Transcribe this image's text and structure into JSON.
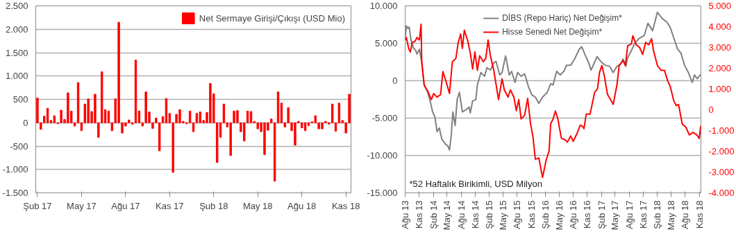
{
  "chart_data": [
    {
      "type": "bar",
      "categories": [
        "Şub 17",
        null,
        null,
        null,
        null,
        null,
        null,
        null,
        null,
        null,
        null,
        null,
        null,
        "May 17",
        null,
        null,
        null,
        null,
        null,
        null,
        null,
        null,
        null,
        null,
        null,
        null,
        "Ağu 17",
        null,
        null,
        null,
        null,
        null,
        null,
        null,
        null,
        null,
        null,
        null,
        null,
        "Kas 17",
        null,
        null,
        null,
        null,
        null,
        null,
        null,
        null,
        null,
        null,
        null,
        null,
        "Şub 18",
        null,
        null,
        null,
        null,
        null,
        null,
        null,
        null,
        null,
        null,
        null,
        null,
        "May 18",
        null,
        null,
        null,
        null,
        null,
        null,
        null,
        null,
        null,
        null,
        null,
        null,
        "Ağu 18",
        null,
        null,
        null,
        null,
        null,
        null,
        null,
        null,
        null,
        null,
        null,
        null,
        "Kas 18",
        null
      ],
      "series": [
        {
          "name": "Net Sermaye Girişi/Çıkışı (USD Mio)",
          "color": "#ff0000",
          "values": [
            530,
            -140,
            140,
            310,
            50,
            150,
            -20,
            270,
            70,
            640,
            250,
            -70,
            860,
            -170,
            400,
            510,
            240,
            610,
            -310,
            1090,
            280,
            250,
            -170,
            510,
            2150,
            -220,
            -70,
            60,
            -30,
            1340,
            250,
            -70,
            660,
            230,
            -120,
            100,
            -600,
            130,
            520,
            200,
            -1060,
            180,
            280,
            30,
            -20,
            250,
            -190,
            200,
            230,
            50,
            220,
            840,
            620,
            -850,
            -310,
            400,
            -90,
            -700,
            250,
            260,
            -190,
            -390,
            250,
            240,
            30,
            -130,
            -190,
            -680,
            -160,
            80,
            -1250,
            660,
            420,
            -90,
            320,
            -170,
            -480,
            30,
            -110,
            -170,
            -60,
            20,
            150,
            -130,
            -130,
            30,
            -30,
            400,
            -180,
            420,
            50,
            -220,
            610
          ]
        }
      ],
      "ylim": [
        -1500,
        2500
      ],
      "yticks": [
        {
          "value": -1500,
          "label": "-1.500"
        },
        {
          "value": -1000,
          "label": "-1.000"
        },
        {
          "value": -500,
          "label": "-500"
        },
        0,
        500,
        {
          "value": 1000,
          "label": "1.000"
        },
        {
          "value": 1500,
          "label": "1.500"
        },
        {
          "value": 2000,
          "label": "2.000"
        },
        {
          "value": 2500,
          "label": "2.500"
        }
      ],
      "grid": "y",
      "legend": "top right"
    },
    {
      "type": "line",
      "xlim": [
        "2013-08-01",
        "2018-11-12"
      ],
      "xticks": [
        {
          "value": "2013-08-01",
          "label": "Ağu 13"
        },
        {
          "value": "2013-11-01",
          "label": "Kas 13"
        },
        {
          "value": "2014-02-01",
          "label": "Şub 14"
        },
        {
          "value": "2014-05-01",
          "label": "May 14"
        },
        {
          "value": "2014-08-01",
          "label": "Ağu 14"
        },
        {
          "value": "2014-11-01",
          "label": "Kas 14"
        },
        {
          "value": "2015-02-01",
          "label": "Şub 15"
        },
        {
          "value": "2015-05-01",
          "label": "May 15"
        },
        {
          "value": "2015-08-01",
          "label": "Ağu 15"
        },
        {
          "value": "2015-11-01",
          "label": "Kas 15"
        },
        {
          "value": "2016-02-01",
          "label": "Şub 16"
        },
        {
          "value": "2016-05-01",
          "label": "May 16"
        },
        {
          "value": "2016-08-01",
          "label": "Ağu 16"
        },
        {
          "value": "2016-11-01",
          "label": "Kas 16"
        },
        {
          "value": "2017-02-01",
          "label": "Şub 17"
        },
        {
          "value": "2017-05-01",
          "label": "May 17"
        },
        {
          "value": "2017-08-01",
          "label": "Ağu 17"
        },
        {
          "value": "2017-11-01",
          "label": "Kas 17"
        },
        {
          "value": "2018-02-01",
          "label": "Şub 18"
        },
        {
          "value": "2018-05-01",
          "label": "May 18"
        },
        {
          "value": "2018-08-01",
          "label": "Ağu 18"
        },
        {
          "value": "2018-11-01",
          "label": "Kas 18"
        }
      ],
      "ylim": [
        -15000,
        10000
      ],
      "yticks": [
        {
          "value": -15000,
          "label": "-15.000"
        },
        {
          "value": -10000,
          "label": "-10.000"
        },
        {
          "value": -5000,
          "label": "-5.000"
        },
        0,
        {
          "value": 5000,
          "label": "5.000"
        },
        {
          "value": 10000,
          "label": "10.000"
        }
      ],
      "y2lim": [
        -4000,
        5000
      ],
      "y2ticks": [
        {
          "value": -4000,
          "label": "-4.000"
        },
        {
          "value": -3000,
          "label": "-3.000"
        },
        {
          "value": -2000,
          "label": "-2.000"
        },
        {
          "value": -1000,
          "label": "-1.000"
        },
        0,
        {
          "value": 1000,
          "label": "1.000"
        },
        {
          "value": 2000,
          "label": "2.000"
        },
        {
          "value": 3000,
          "label": "3.000"
        },
        {
          "value": 4000,
          "label": "4.000"
        },
        {
          "value": 5000,
          "label": "5.000"
        }
      ],
      "series": [
        {
          "name": "DİBS (Repo Hariç) Net Değişim*",
          "color": "#808080",
          "x": [
            "2013-08-02",
            "2013-08-09",
            "2013-08-19",
            "2013-08-27",
            "2013-09-09",
            "2013-09-24",
            "2013-10-09",
            "2013-10-17",
            "2013-11-02",
            "2013-11-17",
            "2013-12-03",
            "2013-12-26",
            "2014-01-11",
            "2014-01-27",
            "2014-02-11",
            "2014-02-25",
            "2014-03-12",
            "2014-03-28",
            "2014-04-20",
            "2014-05-08",
            "2014-05-17",
            "2014-05-28",
            "2014-06-08",
            "2014-06-23",
            "2014-07-06",
            "2014-07-21",
            "2014-08-09",
            "2014-09-04",
            "2014-09-22",
            "2014-09-30",
            "2014-10-15",
            "2014-11-05",
            "2014-11-15",
            "2014-12-08",
            "2015-01-01",
            "2015-01-16",
            "2015-02-08",
            "2015-03-02",
            "2015-03-17",
            "2015-04-10",
            "2015-04-25",
            "2015-05-18",
            "2015-06-11",
            "2015-06-26",
            "2015-07-19",
            "2015-08-04",
            "2015-08-27",
            "2015-09-19",
            "2015-10-13",
            "2015-11-05",
            "2015-11-28",
            "2015-12-21",
            "2016-01-14",
            "2016-02-14",
            "2016-03-07",
            "2016-03-23",
            "2016-04-15",
            "2016-05-08",
            "2016-06-01",
            "2016-06-19",
            "2016-07-16",
            "2016-08-10",
            "2016-09-10",
            "2016-09-25",
            "2016-10-19",
            "2016-11-10",
            "2016-11-25",
            "2017-01-04",
            "2017-01-28",
            "2017-02-26",
            "2017-03-28",
            "2017-04-19",
            "2017-05-13",
            "2017-06-07",
            "2017-06-22",
            "2017-07-10",
            "2017-07-22",
            "2017-08-16",
            "2017-09-07",
            "2017-10-07",
            "2017-11-07",
            "2017-12-01",
            "2018-01-01",
            "2018-02-01",
            "2018-03-04",
            "2018-04-04",
            "2018-04-25",
            "2018-05-19",
            "2018-06-13",
            "2018-07-04",
            "2018-07-28",
            "2018-08-22",
            "2018-09-16",
            "2018-10-01",
            "2018-10-19",
            "2018-11-07"
          ],
          "values": [
            5860,
            7340,
            7000,
            7170,
            5360,
            4380,
            4050,
            3550,
            4210,
            2400,
            -560,
            -1550,
            -2700,
            -4180,
            -4840,
            -6810,
            -6320,
            -7800,
            -8460,
            -8780,
            -9280,
            -7470,
            -4180,
            -5990,
            -2530,
            -1550,
            -4180,
            -3850,
            -3520,
            -4300,
            -2700,
            -2530,
            -560,
            1090,
            590,
            1740,
            1410,
            2400,
            2570,
            760,
            1090,
            3320,
            760,
            1250,
            -230,
            1090,
            590,
            920,
            -720,
            -1880,
            -2200,
            -3030,
            -2200,
            -1550,
            -400,
            -560,
            1250,
            760,
            1250,
            2070,
            2070,
            2900,
            4210,
            4540,
            3390,
            2400,
            1410,
            3220,
            2570,
            2070,
            1910,
            1090,
            1910,
            2240,
            2900,
            1910,
            3060,
            4050,
            5030,
            5690,
            6020,
            7670,
            6680,
            9150,
            8320,
            7830,
            7170,
            5690,
            4210,
            3720,
            2070,
            1090,
            -230,
            760,
            260,
            760
          ]
        },
        {
          "name": "Hisse Senedi Net Değişim*",
          "color": "#ff0000",
          "axis": "y2",
          "x": [
            "2013-08-02",
            "2013-08-09",
            "2013-08-24",
            "2013-09-04",
            "2013-09-16",
            "2013-10-05",
            "2013-10-17",
            "2013-11-02",
            "2013-11-13",
            "2013-11-17",
            "2013-12-03",
            "2013-12-26",
            "2014-01-19",
            "2014-02-03",
            "2014-02-25",
            "2014-03-20",
            "2014-04-04",
            "2014-04-27",
            "2014-05-17",
            "2014-06-05",
            "2014-06-28",
            "2014-07-13",
            "2014-07-29",
            "2014-08-09",
            "2014-08-22",
            "2014-09-14",
            "2014-09-30",
            "2014-10-15",
            "2014-10-30",
            "2014-11-15",
            "2014-11-30",
            "2014-12-24",
            "2015-01-09",
            "2015-01-24",
            "2015-02-08",
            "2015-03-02",
            "2015-04-02",
            "2015-04-25",
            "2015-05-10",
            "2015-06-03",
            "2015-06-18",
            "2015-07-11",
            "2015-07-27",
            "2015-08-12",
            "2015-08-27",
            "2015-09-19",
            "2015-10-09",
            "2015-10-28",
            "2015-11-13",
            "2015-11-28",
            "2015-12-21",
            "2016-01-14",
            "2016-02-06",
            "2016-02-26",
            "2016-03-07",
            "2016-03-23",
            "2016-04-07",
            "2016-04-23",
            "2016-05-16",
            "2016-06-09",
            "2016-06-24",
            "2016-07-16",
            "2016-08-01",
            "2016-08-25",
            "2016-09-16",
            "2016-10-01",
            "2016-10-10",
            "2016-10-25",
            "2016-11-19",
            "2016-12-04",
            "2016-12-19",
            "2017-01-07",
            "2017-01-19",
            "2017-02-04",
            "2017-02-19",
            "2017-03-13",
            "2017-03-28",
            "2017-04-19",
            "2017-05-13",
            "2017-05-28",
            "2017-06-22",
            "2017-07-07",
            "2017-07-22",
            "2017-08-16",
            "2017-08-25",
            "2017-09-16",
            "2017-10-07",
            "2017-10-28",
            "2017-11-16",
            "2017-12-07",
            "2017-12-25",
            "2018-01-07",
            "2018-02-01",
            "2018-02-25",
            "2018-03-19",
            "2018-04-10",
            "2018-04-25",
            "2018-05-19",
            "2018-06-04",
            "2018-06-19",
            "2018-07-13",
            "2018-08-07",
            "2018-08-28",
            "2018-09-22",
            "2018-10-16",
            "2018-11-01",
            "2018-11-10"
          ],
          "values": [
            3360,
            3480,
            2950,
            2780,
            3240,
            3300,
            3480,
            3360,
            4120,
            2370,
            1190,
            900,
            490,
            780,
            610,
            730,
            1840,
            1310,
            780,
            2310,
            2480,
            3240,
            3650,
            2950,
            3830,
            3300,
            2720,
            1960,
            2780,
            1900,
            2600,
            2310,
            2480,
            3360,
            2600,
            1900,
            490,
            1490,
            960,
            610,
            960,
            610,
            -40,
            490,
            -440,
            -270,
            550,
            -680,
            -1320,
            -2380,
            -2320,
            -3260,
            -2440,
            -1970,
            -680,
            -440,
            -60,
            -440,
            -1380,
            -1440,
            -1560,
            -1260,
            -1520,
            -1150,
            -740,
            -800,
            -910,
            -210,
            -210,
            320,
            840,
            1020,
            1780,
            2130,
            1660,
            730,
            550,
            260,
            1190,
            2130,
            2370,
            2130,
            3070,
            3180,
            3560,
            3130,
            3010,
            2660,
            3240,
            3130,
            3420,
            2830,
            2130,
            1900,
            1900,
            1370,
            1140,
            430,
            200,
            260,
            -680,
            -850,
            -1210,
            -1090,
            -1210,
            -1380,
            -800
          ]
        }
      ],
      "grid": "y",
      "legend": "top",
      "annotations": [
        "*52 Haftalık Birikimli, USD Milyon"
      ]
    }
  ]
}
